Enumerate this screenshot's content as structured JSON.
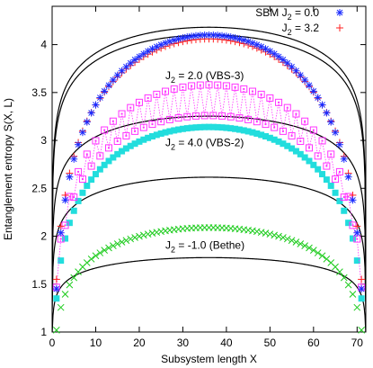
{
  "chart_data": {
    "type": "scatter",
    "xlabel": "Subsystem length X",
    "ylabel": "Entanglement entropy S(X, L)",
    "xlim": [
      0,
      72
    ],
    "ylim": [
      1,
      4.4
    ],
    "xticks": [
      0,
      10,
      20,
      30,
      40,
      50,
      60,
      70
    ],
    "yticks": [
      1,
      1.5,
      2,
      2.5,
      3,
      3.5,
      4
    ],
    "L": 72,
    "grid": false,
    "legend_position": "top-right",
    "legend": [
      {
        "label_main": "SBM J",
        "label_sub": "2",
        "label_rest": " = 0.0",
        "marker": "star",
        "color": "#1a2bff"
      },
      {
        "label_main": "J",
        "label_sub": "2",
        "label_rest": " = 3.2",
        "marker": "plus",
        "color": "#ff2020"
      }
    ],
    "annotations": [
      {
        "main": "J",
        "sub": "2",
        "rest": " = 2.0 (VBS-3)",
        "x": 26,
        "y": 3.64
      },
      {
        "main": "J",
        "sub": "2",
        "rest": " = 4.0 (VBS-2)",
        "x": 26,
        "y": 2.94
      },
      {
        "main": "J",
        "sub": "2",
        "rest": " = -1.0 (Bethe)",
        "x": 26,
        "y": 1.87
      }
    ],
    "series": [
      {
        "name": "SBM J2 = 0.0",
        "marker": "star",
        "color": "#1a2bff",
        "min": 1.45,
        "max": 4.1,
        "osc": 0.0,
        "x_start": 1,
        "x_end": 71
      },
      {
        "name": "J2 = 3.2",
        "marker": "plus",
        "color": "#ff2020",
        "min": 1.55,
        "max": 4.06,
        "osc": 0.0,
        "x_start": 1,
        "x_end": 71
      },
      {
        "name": "J2 = 2.0 (VBS-3)",
        "marker": "square_open",
        "color": "#ff33ff",
        "min": 1.5,
        "max": 3.42,
        "osc": 0.16,
        "x_start": 1,
        "x_end": 71
      },
      {
        "name": "J2 = 4.0 (VBS-2)",
        "marker": "square_filled",
        "color": "#22dddd",
        "min": 1.35,
        "max": 3.14,
        "osc": 0.0,
        "x_start": 1,
        "x_end": 71
      },
      {
        "name": "J2 = -1.0 (Bethe)",
        "marker": "cross",
        "color": "#1fcc1f",
        "min": 1.02,
        "max": 2.09,
        "osc": 0.0,
        "x_start": 1,
        "x_end": 71
      }
    ],
    "fit_curves": [
      {
        "c": 0.94,
        "const": 3.2
      },
      {
        "c": 0.94,
        "const": 3.12
      },
      {
        "c": 0.75,
        "const": 2.47
      },
      {
        "c": 0.59,
        "const": 2.0
      },
      {
        "c": 0.38,
        "const": 1.38
      }
    ]
  }
}
